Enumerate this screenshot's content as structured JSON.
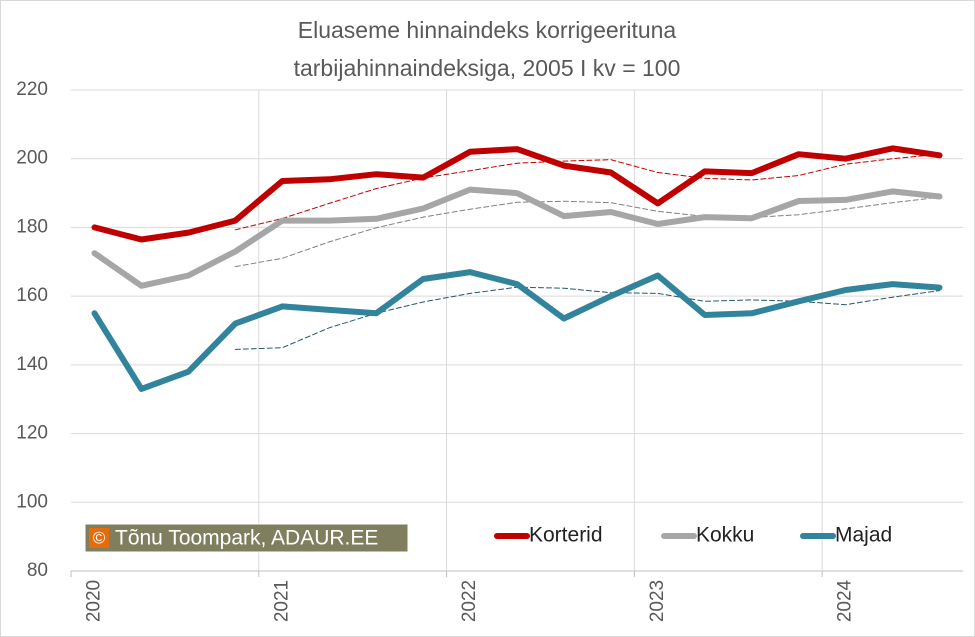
{
  "chart_data": {
    "type": "line",
    "title": [
      "Eluaseme hinnaindeks korrigeerituna",
      "tarbijahinnaindeksiga, 2005 I kv = 100"
    ],
    "annotation": "Tõnu Toompark, ADAUR.EE",
    "annotation_symbol": "©",
    "categories": [
      "2020",
      null,
      null,
      null,
      "2021",
      null,
      null,
      null,
      "2022",
      null,
      null,
      null,
      "2023",
      null,
      null,
      null,
      "2024",
      null,
      null
    ],
    "ylim": [
      80,
      220
    ],
    "yticks": [
      80,
      100,
      120,
      140,
      160,
      180,
      200,
      220
    ],
    "grid": true,
    "legend": "bottom-right",
    "series": [
      {
        "name": "Korterid",
        "color": "#c00000",
        "values": [
          180,
          176.5,
          178.5,
          182,
          193.5,
          194,
          195.5,
          194.5,
          202,
          202.8,
          198,
          196,
          187,
          196.3,
          195.8,
          201.3,
          200,
          203,
          201
        ]
      },
      {
        "name": "Kokku",
        "color": "#a6a6a6",
        "values": [
          172.5,
          163,
          166,
          173,
          182,
          182,
          182.5,
          185.5,
          191,
          190,
          183.3,
          184.5,
          181,
          183,
          182.7,
          187.7,
          188,
          190.5,
          189
        ]
      },
      {
        "name": "Majad",
        "color": "#31849b",
        "values": [
          155,
          133,
          138,
          152,
          157,
          156,
          155,
          165,
          167,
          163.5,
          153.5,
          160,
          166,
          154.5,
          155,
          158.5,
          161.8,
          163.5,
          162.5
        ]
      }
    ],
    "trend_series": [
      {
        "color": "#c00000",
        "values": [
          null,
          null,
          null,
          179.3,
          182.6,
          187,
          191.3,
          194.4,
          196.5,
          198.7,
          199.3,
          199.7,
          196,
          194.3,
          193.8,
          195.1,
          198.4,
          200,
          201.3
        ]
      },
      {
        "color": "#808080",
        "values": [
          null,
          null,
          null,
          168.6,
          171,
          175.8,
          179.9,
          183,
          185.3,
          187.3,
          187.6,
          187.2,
          184.7,
          183.2,
          182.9,
          183.7,
          185.4,
          187.2,
          188.8
        ]
      },
      {
        "color": "#215968",
        "values": [
          null,
          null,
          null,
          144.5,
          145,
          150.8,
          155,
          158.3,
          160.8,
          162.6,
          162.3,
          161,
          160.8,
          158.5,
          158.9,
          158.5,
          157.5,
          159.7,
          161.6
        ]
      }
    ]
  }
}
